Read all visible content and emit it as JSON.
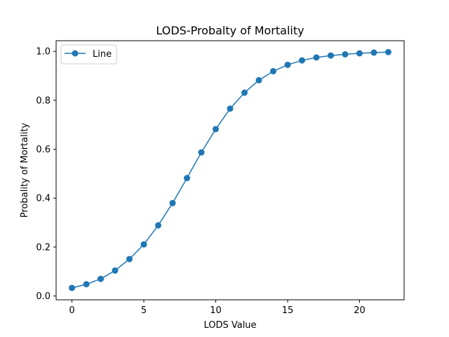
{
  "chart_data": {
    "type": "line",
    "title": "LODS-Probalty of Mortality",
    "xlabel": "LODS Value",
    "ylabel": "Probality of Mortality",
    "xlim": [
      -1.1,
      23.1
    ],
    "ylim": [
      -0.0155,
      1.0435
    ],
    "xticks": [
      0,
      5,
      10,
      15,
      20
    ],
    "yticks": [
      0.0,
      0.2,
      0.4,
      0.6,
      0.8,
      1.0
    ],
    "xtick_labels": [
      "0",
      "5",
      "10",
      "15",
      "20"
    ],
    "ytick_labels": [
      "0.0",
      "0.2",
      "0.4",
      "0.6",
      "0.8",
      "1.0"
    ],
    "grid": false,
    "legend_position": "upper-left",
    "series": [
      {
        "name": "Line",
        "color": "#1f77b4",
        "marker": "circle",
        "x": [
          0,
          1,
          2,
          3,
          4,
          5,
          6,
          7,
          8,
          9,
          10,
          11,
          12,
          13,
          14,
          15,
          16,
          17,
          18,
          19,
          20,
          21,
          22
        ],
        "y": [
          0.033,
          0.048,
          0.07,
          0.104,
          0.151,
          0.211,
          0.289,
          0.38,
          0.482,
          0.587,
          0.682,
          0.766,
          0.831,
          0.882,
          0.919,
          0.945,
          0.963,
          0.975,
          0.983,
          0.988,
          0.992,
          0.995,
          0.997
        ]
      }
    ]
  }
}
